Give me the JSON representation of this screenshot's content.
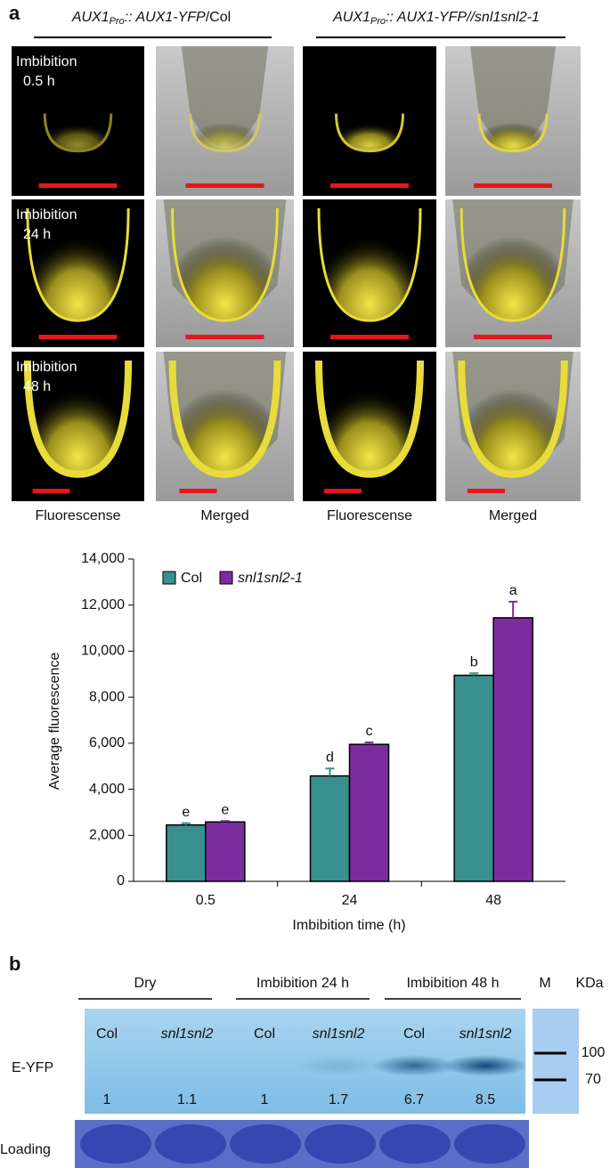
{
  "panel_a": {
    "label": "a",
    "header_left": [
      "AUX1",
      "Pro",
      ":: ",
      "AUX1-YFP",
      "/Col"
    ],
    "header_right": [
      "AUX1",
      "Pro",
      ":: ",
      "AUX1-YFP//snl1snl2-1"
    ],
    "row_labels": [
      [
        "Imbibition",
        "0.5 h"
      ],
      [
        "Imbibition",
        "24 h"
      ],
      [
        "Imbibition",
        "48 h"
      ]
    ],
    "column_labels": [
      "Fluorescense",
      "Merged",
      "Fluorescense",
      "Merged"
    ]
  },
  "chart_data": {
    "type": "bar",
    "y_label": "Average fluorescence",
    "x_label": "Imbibition time (h)",
    "categories": [
      "0.5",
      "24",
      "48"
    ],
    "series": [
      {
        "name": "Col",
        "color": "#3a8f8f",
        "values": [
          2450,
          4580,
          8950
        ],
        "errors": [
          80,
          320,
          90
        ],
        "letters": [
          "e",
          "d",
          "b"
        ]
      },
      {
        "name": "snl1snl2-1",
        "color": "#7b2d9e",
        "values": [
          2580,
          5950,
          11450
        ],
        "errors": [
          40,
          90,
          700
        ],
        "letters": [
          "e",
          "c",
          "a"
        ]
      }
    ],
    "ylim": [
      0,
      14000
    ],
    "yticks": [
      0,
      {
        "value": 2000,
        "label": "2,000"
      },
      {
        "value": 4000,
        "label": "4,000"
      },
      {
        "value": 6000,
        "label": "6,000"
      },
      {
        "value": 8000,
        "label": "8,000"
      },
      {
        "value": 10000,
        "label": "10,000"
      },
      {
        "value": 12000,
        "label": "12,000"
      },
      {
        "value": 14000,
        "label": "14,000"
      }
    ]
  },
  "panel_b": {
    "label": "b",
    "groups": [
      "Dry",
      "Imbibition 24 h",
      "Imbibition 48 h"
    ],
    "lanes": [
      "Col",
      "snl1snl2",
      "Col",
      "snl1snl2",
      "Col",
      "snl1snl2"
    ],
    "quantities": [
      1,
      1.1,
      1,
      1.7,
      6.7,
      8.5
    ],
    "marker_label": "M",
    "unit": "KDa",
    "markers": [
      100,
      70
    ],
    "row_labels": [
      "E-YFP",
      "Loading"
    ]
  }
}
